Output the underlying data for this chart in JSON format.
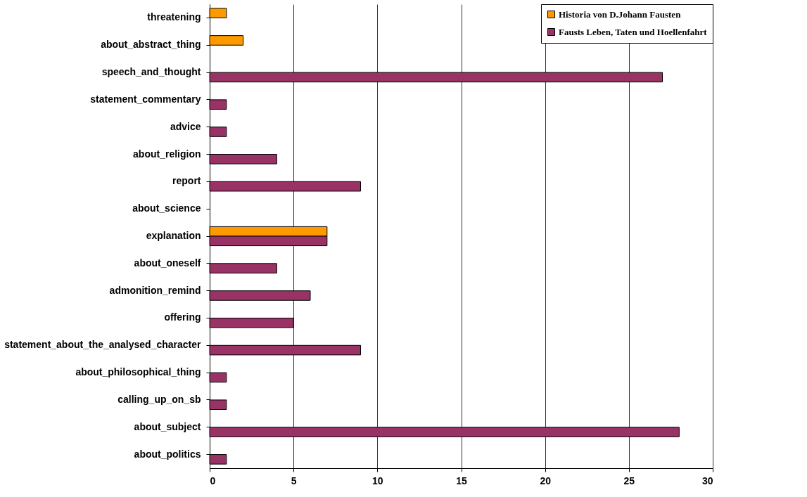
{
  "chart_data": {
    "type": "bar",
    "orientation": "horizontal",
    "categories": [
      "threatening",
      "about_abstract_thing",
      "speech_and_thought",
      "statement_commentary",
      "advice",
      "about_religion",
      "report",
      "about_science",
      "explanation",
      "about_oneself",
      "admonition_remind",
      "offering",
      "statement_about_the_analysed_character",
      "about_philosophical_thing",
      "calling_up_on_sb",
      "about_subject",
      "about_politics"
    ],
    "series": [
      {
        "name": "Historia von D.Johann Fausten",
        "color": "#ff9900",
        "values": [
          1,
          2,
          null,
          null,
          null,
          null,
          null,
          null,
          7,
          null,
          null,
          null,
          null,
          null,
          null,
          null,
          null
        ]
      },
      {
        "name": "Fausts Leben, Taten und Hoellenfahrt",
        "color": "#993366",
        "values": [
          null,
          null,
          27,
          1,
          1,
          4,
          9,
          null,
          7,
          4,
          6,
          5,
          9,
          1,
          1,
          28,
          1
        ]
      }
    ],
    "xlim": [
      0,
      30
    ],
    "xticks": [
      0,
      5,
      10,
      15,
      20,
      25,
      30
    ],
    "grid": "x",
    "legend": "top right"
  }
}
